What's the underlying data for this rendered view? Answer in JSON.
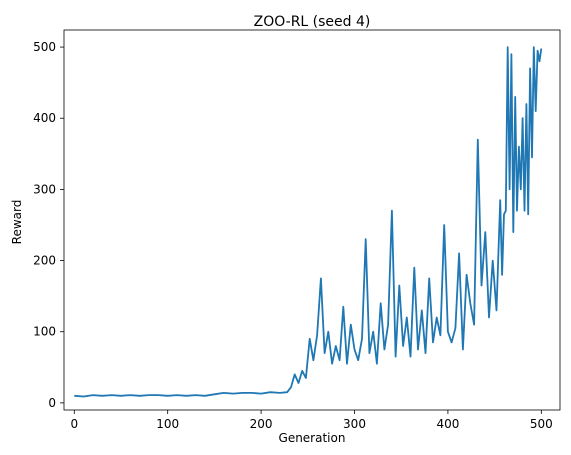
{
  "chart_data": {
    "type": "line",
    "title": "ZOO-RL (seed 4)",
    "xlabel": "Generation",
    "ylabel": "Reward",
    "xlim": [
      -11,
      520
    ],
    "ylim": [
      -10,
      524
    ],
    "x_ticks": [
      0,
      100,
      200,
      300,
      400,
      500
    ],
    "y_ticks": [
      0,
      100,
      200,
      300,
      400,
      500
    ],
    "grid": false,
    "series": [
      {
        "color": "#1f77b4",
        "x": [
          0,
          10,
          20,
          30,
          40,
          50,
          60,
          70,
          80,
          90,
          100,
          110,
          120,
          130,
          140,
          150,
          160,
          170,
          180,
          190,
          200,
          210,
          220,
          228,
          232,
          236,
          240,
          244,
          248,
          252,
          256,
          260,
          264,
          268,
          272,
          276,
          280,
          284,
          288,
          292,
          296,
          300,
          304,
          308,
          312,
          316,
          320,
          324,
          328,
          332,
          336,
          340,
          344,
          348,
          352,
          356,
          360,
          364,
          368,
          372,
          376,
          380,
          384,
          388,
          392,
          396,
          400,
          404,
          408,
          412,
          416,
          420,
          424,
          428,
          432,
          436,
          440,
          444,
          448,
          452,
          456,
          458,
          460,
          462,
          464,
          466,
          468,
          470,
          472,
          474,
          476,
          478,
          480,
          482,
          484,
          486,
          488,
          490,
          492,
          494,
          496,
          498,
          500
        ],
        "y": [
          10,
          9,
          11,
          10,
          11,
          10,
          11,
          10,
          11,
          11,
          10,
          11,
          10,
          11,
          10,
          12,
          14,
          13,
          14,
          14,
          13,
          15,
          14,
          15,
          22,
          40,
          28,
          45,
          35,
          90,
          60,
          95,
          175,
          70,
          100,
          55,
          80,
          60,
          135,
          55,
          110,
          75,
          60,
          90,
          230,
          70,
          100,
          55,
          140,
          75,
          110,
          270,
          65,
          165,
          80,
          120,
          65,
          190,
          75,
          130,
          70,
          175,
          85,
          120,
          95,
          250,
          100,
          85,
          105,
          210,
          75,
          180,
          140,
          110,
          370,
          165,
          240,
          120,
          200,
          130,
          285,
          180,
          265,
          270,
          500,
          300,
          490,
          240,
          430,
          270,
          360,
          300,
          400,
          270,
          420,
          265,
          470,
          345,
          500,
          410,
          495,
          480,
          498
        ]
      }
    ]
  }
}
